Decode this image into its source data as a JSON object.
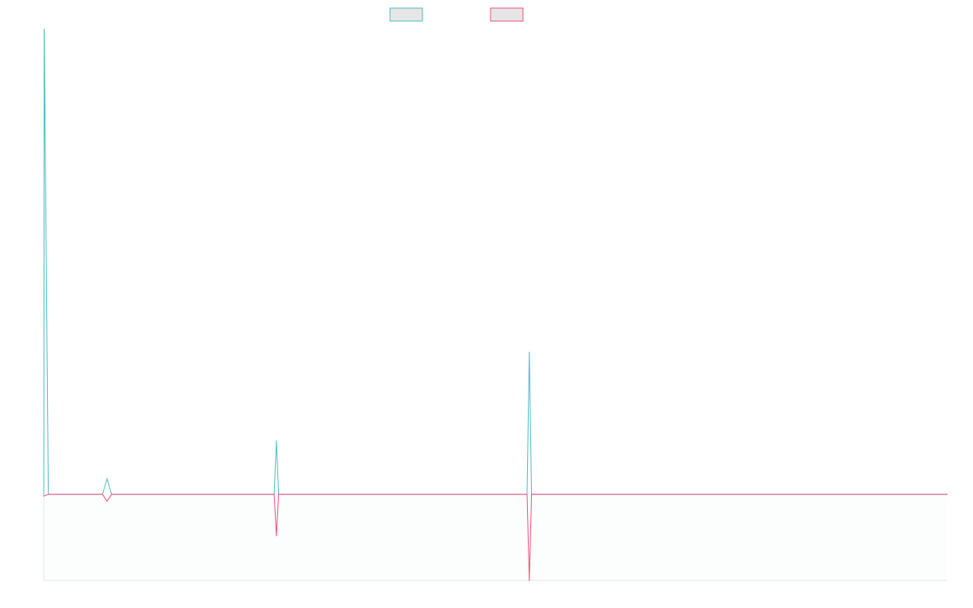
{
  "colors": {
    "series_1": "#4fbcc4",
    "series_2": "#f0527a",
    "axis": "#e6e6e6",
    "legend_fill": "#e6e6e6"
  },
  "chart_data": {
    "type": "line",
    "title": "",
    "xlabel": "",
    "ylabel": "",
    "grid": false,
    "legend": "top-center",
    "xlim": [
      0,
      200
    ],
    "ylim": [
      -100,
      540
    ],
    "series": [
      {
        "color": "#4fbcc4",
        "points": [
          [
            0,
            0
          ],
          [
            0.1,
            540
          ],
          [
            1,
            0
          ],
          [
            13,
            0
          ],
          [
            14,
            18
          ],
          [
            15,
            0
          ],
          [
            51,
            0
          ],
          [
            51.5,
            62
          ],
          [
            52,
            0
          ],
          [
            107,
            0
          ],
          [
            107.5,
            165
          ],
          [
            108,
            0
          ],
          [
            200,
            0
          ]
        ]
      },
      {
        "color": "#f0527a",
        "points": [
          [
            0,
            -2
          ],
          [
            1,
            0
          ],
          [
            13,
            0
          ],
          [
            14,
            -8
          ],
          [
            15,
            0
          ],
          [
            51,
            0
          ],
          [
            51.5,
            -48
          ],
          [
            52,
            0
          ],
          [
            107,
            0
          ],
          [
            107.5,
            -100
          ],
          [
            108,
            0
          ],
          [
            200,
            0
          ]
        ]
      }
    ]
  }
}
